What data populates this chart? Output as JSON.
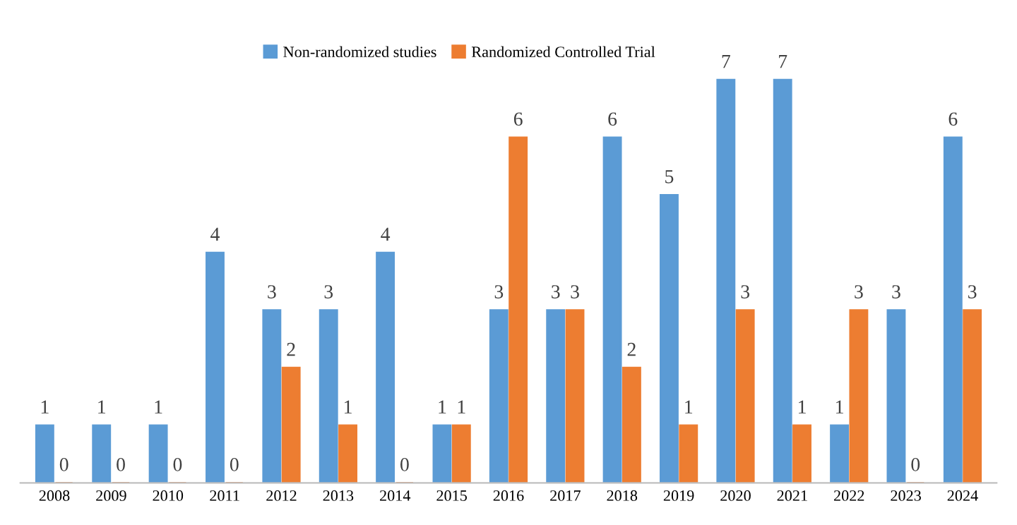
{
  "chart_data": {
    "type": "bar",
    "categories": [
      "2008",
      "2009",
      "2010",
      "2011",
      "2012",
      "2013",
      "2014",
      "2015",
      "2016",
      "2017",
      "2018",
      "2019",
      "2020",
      "2021",
      "2022",
      "2023",
      "2024"
    ],
    "series": [
      {
        "name": "Non-randomized studies",
        "color": "#5b9bd5",
        "values": [
          1,
          1,
          1,
          4,
          3,
          3,
          4,
          1,
          3,
          3,
          6,
          5,
          7,
          7,
          1,
          3,
          6
        ]
      },
      {
        "name": "Randomized Controlled Trial",
        "color": "#ed7d31",
        "values": [
          0,
          0,
          0,
          0,
          2,
          1,
          0,
          1,
          6,
          3,
          2,
          1,
          3,
          1,
          3,
          0,
          3
        ]
      }
    ],
    "data_labels": true,
    "legend": "top",
    "grid": false
  }
}
